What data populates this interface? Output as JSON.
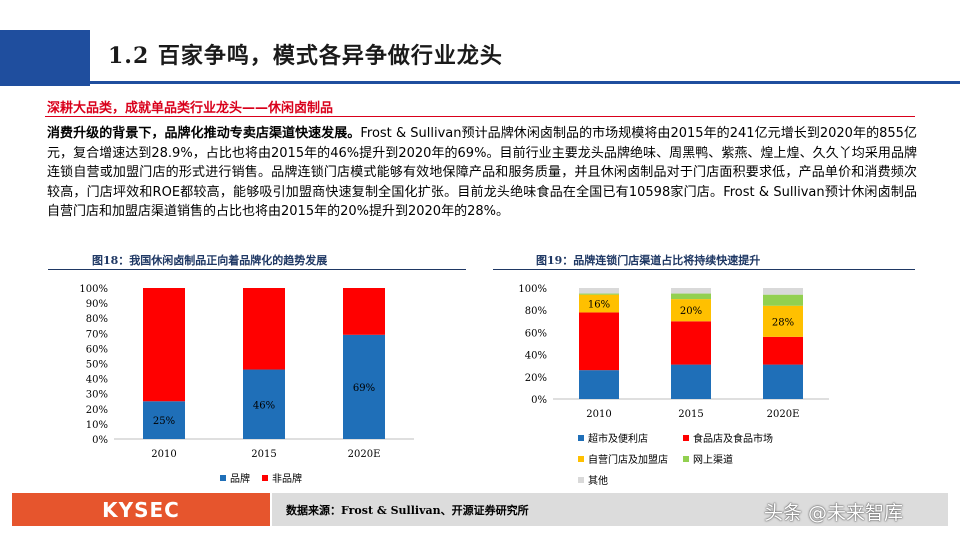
{
  "header": {
    "title": "1.2 百家争鸣，模式各异争做行业龙头"
  },
  "section": {
    "subheading": "深耕大品类，成就单品类行业龙头——休闲卤制品",
    "body_lead": "消费升级的背景下，品牌化推动专卖店渠道快速发展。",
    "body_rest": "Frost & Sullivan预计品牌休闲卤制品的市场规模将由2015年的241亿元增长到2020年的855亿元，复合增速达到28.9%，占比也将由2015年的46%提升到2020年的69%。目前行业主要龙头品牌绝味、周黑鸭、紫燕、煌上煌、久久丫均采用品牌连锁自营或加盟门店的形式进行销售。品牌连锁门店模式能够有效地保障产品和服务质量，并且休闲卤制品对于门店面积要求低，产品单价和消费频次较高，门店坪效和ROE都较高，能够吸引加盟商快速复制全国化扩张。目前龙头绝味食品在全国已有10598家门店。Frost & Sullivan预计休闲卤制品自营门店和加盟店渠道销售的占比也将由2015年的20%提升到2020年的28%。"
  },
  "figures": {
    "fig18_title": "图18：我国休闲卤制品正向着品牌化的趋势发展",
    "fig19_title": "图19：品牌连锁门店渠道占比将持续快速提升"
  },
  "chart_data": [
    {
      "type": "bar",
      "stacked": true,
      "categories": [
        "2010",
        "2015",
        "2020E"
      ],
      "series": [
        {
          "name": "品牌",
          "values": [
            25,
            46,
            69
          ],
          "color": "#1f6fb8",
          "labels": [
            "25%",
            "46%",
            "69%"
          ]
        },
        {
          "name": "非品牌",
          "values": [
            75,
            54,
            31
          ],
          "color": "#ff0000"
        }
      ],
      "y_ticks": [
        "0%",
        "10%",
        "20%",
        "30%",
        "40%",
        "50%",
        "60%",
        "70%",
        "80%",
        "90%",
        "100%"
      ],
      "ylim": [
        0,
        100
      ],
      "legend_position": "bottom"
    },
    {
      "type": "bar",
      "stacked": true,
      "categories": [
        "2010",
        "2015",
        "2020E"
      ],
      "series": [
        {
          "name": "超市及便利店",
          "values": [
            26,
            31,
            31
          ],
          "color": "#1f6fb8"
        },
        {
          "name": "食品店及食品市场",
          "values": [
            52,
            39,
            25
          ],
          "color": "#ff0000"
        },
        {
          "name": "自营门店及加盟店",
          "values": [
            16,
            20,
            28
          ],
          "color": "#ffc000",
          "labels": [
            "16%",
            "20%",
            "28%"
          ]
        },
        {
          "name": "网上渠道",
          "values": [
            1,
            5,
            10
          ],
          "color": "#92d050"
        },
        {
          "name": "其他",
          "values": [
            5,
            5,
            6
          ],
          "color": "#d9d9d9"
        }
      ],
      "y_ticks": [
        "0%",
        "20%",
        "40%",
        "60%",
        "80%",
        "100%"
      ],
      "ylim": [
        0,
        100
      ],
      "legend_position": "bottom"
    }
  ],
  "footer": {
    "logo_text": "KYSEC",
    "source": "数据来源：Frost & Sullivan、开源证券研究所",
    "watermark": "头条 @未来智库"
  },
  "colors": {
    "brand_blue": "#1f4e9e",
    "accent_red": "#d9001b",
    "logo_orange": "#e6552d"
  }
}
